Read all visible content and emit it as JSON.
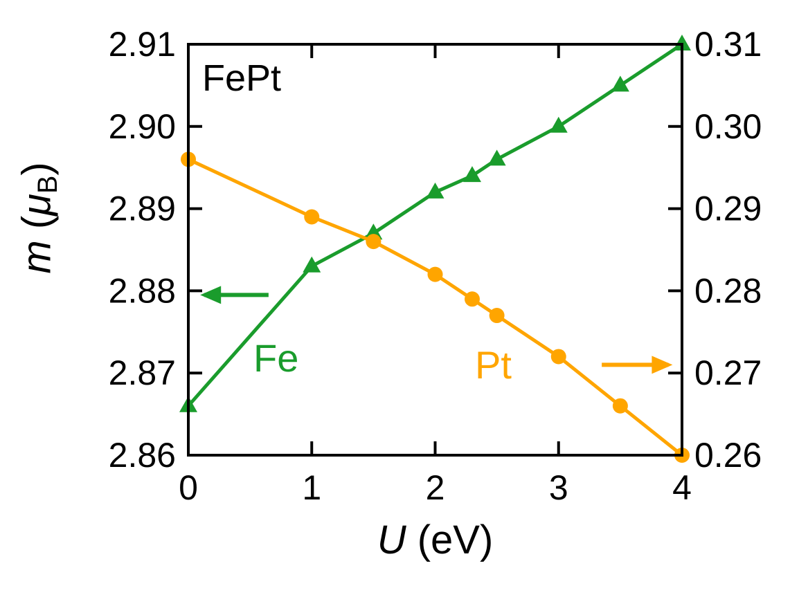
{
  "chart_data": {
    "type": "line",
    "title": "FePt",
    "xlabel": {
      "var": "U",
      "unit": " (eV)"
    },
    "ylabel": {
      "var": "m",
      "open": " (",
      "mu": "μ",
      "sub": "B",
      "close": ")"
    },
    "x": [
      0,
      1,
      1.5,
      2,
      2.3,
      2.5,
      3,
      3.5,
      4
    ],
    "series": [
      {
        "name": "Fe",
        "axis": "left",
        "color": "#1a9c2c",
        "marker": "triangle",
        "values": [
          2.866,
          2.883,
          2.887,
          2.892,
          2.894,
          2.896,
          2.9,
          2.905,
          2.91
        ]
      },
      {
        "name": "Pt",
        "axis": "right",
        "color": "#ffa500",
        "marker": "circle",
        "values": [
          0.296,
          0.289,
          0.286,
          0.282,
          0.279,
          0.277,
          0.272,
          0.266,
          0.26
        ]
      }
    ],
    "xlim": [
      0,
      4
    ],
    "left_ylim": [
      2.86,
      2.91
    ],
    "right_ylim": [
      0.26,
      0.31
    ],
    "x_ticks": [
      "0",
      "1",
      "2",
      "3",
      "4"
    ],
    "left_ticks": [
      "2.86",
      "2.87",
      "2.88",
      "2.89",
      "2.90",
      "2.91"
    ],
    "right_ticks": [
      "0.26",
      "0.27",
      "0.28",
      "0.29",
      "0.30",
      "0.31"
    ],
    "grid": false,
    "legend_position": "inline-annotations",
    "annotations": [
      {
        "name": "fe-arrow",
        "axis": "left",
        "color": "#1a9c2c",
        "direction": "left",
        "x_from": 0.65,
        "x_to": 0.13,
        "y": 2.8795
      },
      {
        "name": "pt-arrow",
        "axis": "right",
        "color": "#ffa500",
        "direction": "right",
        "x_from": 3.35,
        "x_to": 3.89,
        "y": 0.271
      }
    ]
  }
}
